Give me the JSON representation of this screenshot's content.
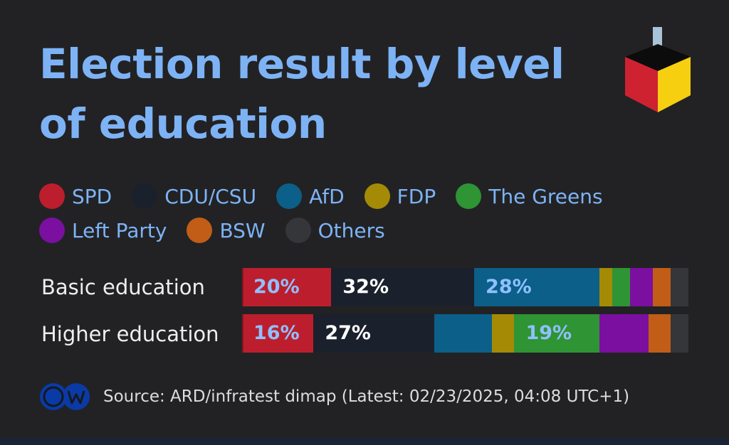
{
  "title": "Election result by level of education",
  "legend": {
    "row1": [
      "SPD",
      "CDU/CSU",
      "AfD",
      "FDP",
      "The Greens"
    ],
    "row2": [
      "Left Party",
      "BSW",
      "Others"
    ]
  },
  "colors": {
    "SPD": "#bd1e2d",
    "CDU/CSU": "#1a202c",
    "AfD": "#0b5f88",
    "FDP": "#a58a06",
    "The Greens": "#2e9434",
    "Left Party": "#7b0fa0",
    "BSW": "#c15d17",
    "Others": "#34363a"
  },
  "source": "Source: ARD/infratest dimap (Latest: 02/23/2025, 04:08 UTC+1)",
  "chart_data": {
    "type": "bar",
    "orientation": "horizontal",
    "stacked": true,
    "unit": "%",
    "title": "Election result by level of education",
    "categories": [
      "Basic education",
      "Higher education"
    ],
    "series": [
      {
        "name": "SPD",
        "values": [
          20,
          16
        ],
        "labels": [
          "20%",
          "16%"
        ]
      },
      {
        "name": "CDU/CSU",
        "values": [
          32,
          27
        ],
        "labels": [
          "32%",
          "27%"
        ]
      },
      {
        "name": "AfD",
        "values": [
          28,
          13
        ],
        "labels": [
          "28%",
          ""
        ]
      },
      {
        "name": "FDP",
        "values": [
          3,
          5
        ],
        "labels": [
          "",
          ""
        ]
      },
      {
        "name": "The Greens",
        "values": [
          4,
          19
        ],
        "labels": [
          "",
          "19%"
        ]
      },
      {
        "name": "Left Party",
        "values": [
          5,
          11
        ],
        "labels": [
          "",
          ""
        ]
      },
      {
        "name": "BSW",
        "values": [
          4,
          5
        ],
        "labels": [
          "",
          ""
        ]
      },
      {
        "name": "Others",
        "values": [
          4,
          4
        ],
        "labels": [
          "",
          ""
        ]
      }
    ],
    "label_colors": {
      "SPD": "#8fc0ff",
      "CDU/CSU": "#ffffff",
      "AfD": "#8fc0ff",
      "The Greens": "#8fc0ff"
    },
    "legend_position": "top-left",
    "grid": false
  }
}
